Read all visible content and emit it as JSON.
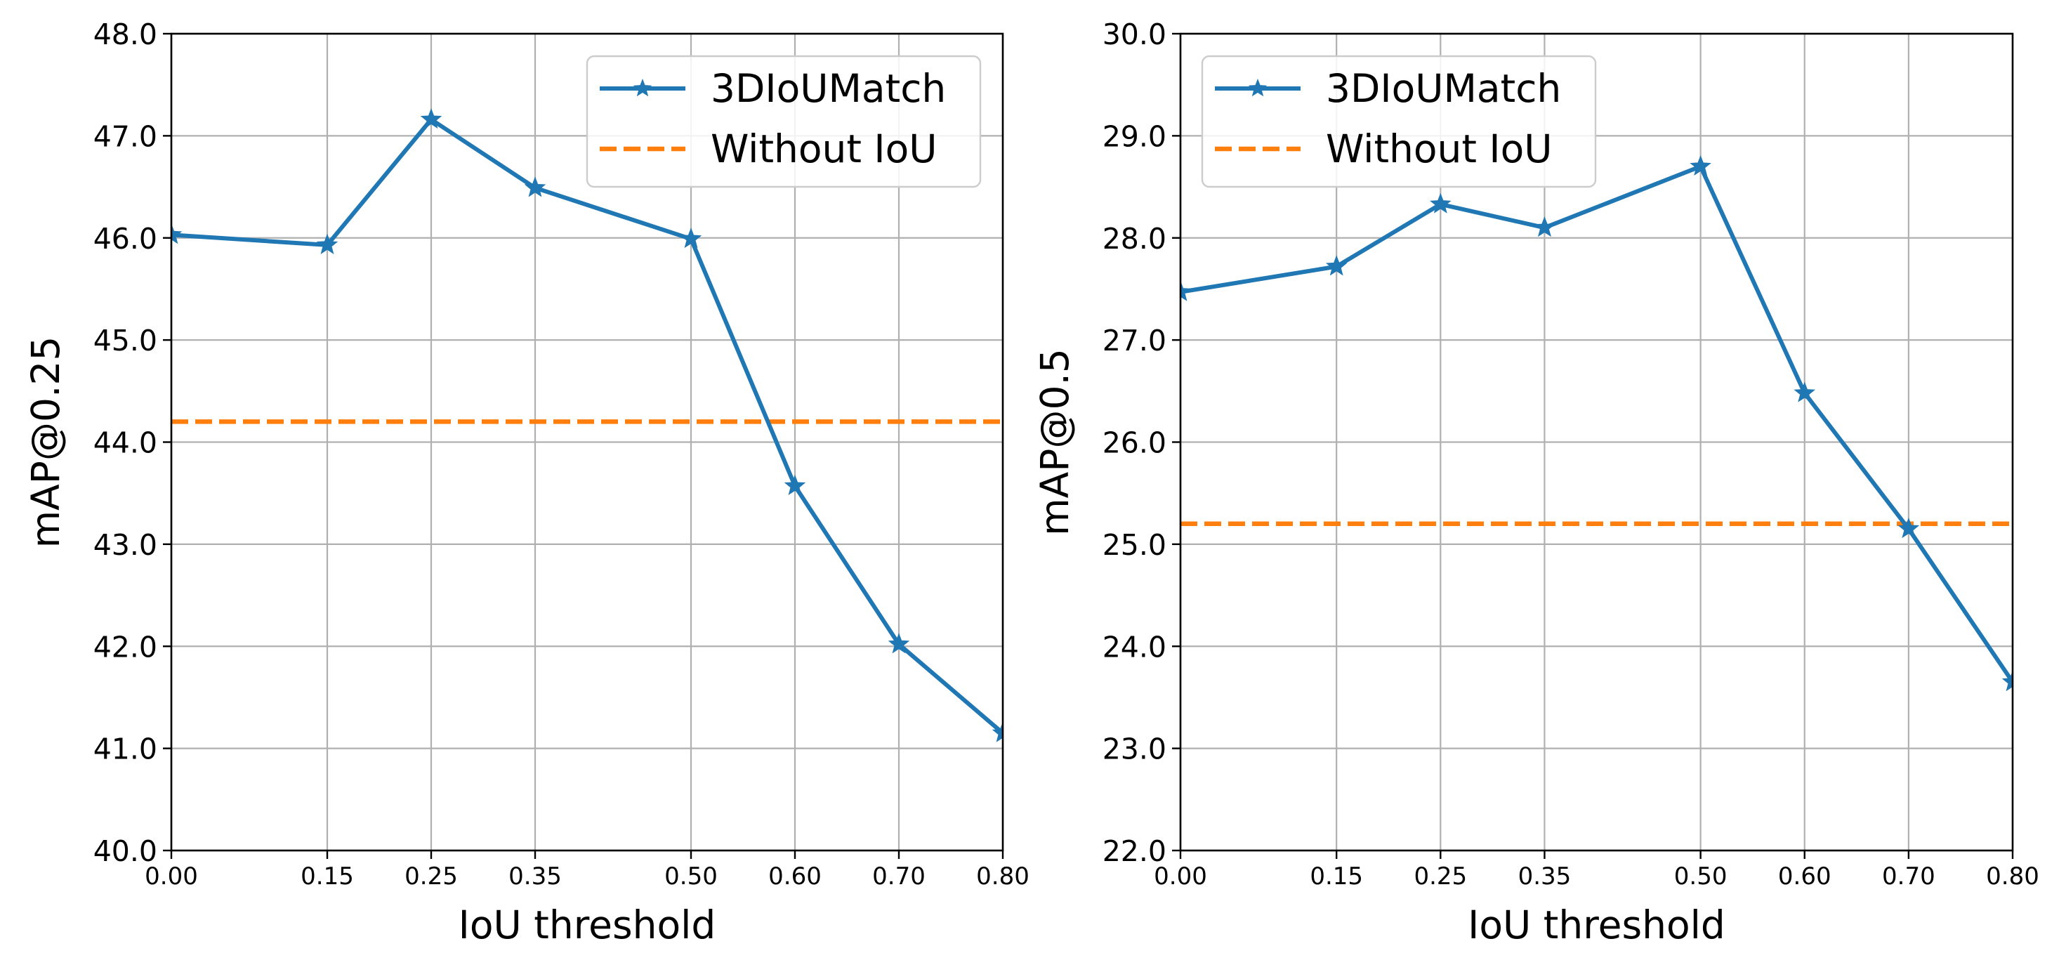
{
  "colors": {
    "series": "#1f77b4",
    "baseline": "#ff7f0e",
    "grid": "#b0b0b0",
    "axis": "#000000",
    "legend_border": "#cccccc"
  },
  "chart_data": [
    {
      "type": "line",
      "title": "",
      "xlabel": "IoU threshold",
      "ylabel": "mAP@0.25",
      "x": [
        0.0,
        0.15,
        0.25,
        0.35,
        0.5,
        0.6,
        0.7,
        0.8
      ],
      "x_tick_labels": [
        "0.00",
        "0.15",
        "0.25",
        "0.35",
        "0.50",
        "0.60",
        "0.70",
        "0.80"
      ],
      "xlim": [
        0.0,
        0.8
      ],
      "ylim": [
        40.0,
        48.0
      ],
      "y_ticks": [
        40.0,
        41.0,
        42.0,
        43.0,
        44.0,
        45.0,
        46.0,
        47.0,
        48.0
      ],
      "y_tick_labels": [
        "40.0",
        "41.0",
        "42.0",
        "43.0",
        "44.0",
        "45.0",
        "46.0",
        "47.0",
        "48.0"
      ],
      "grid": true,
      "legend_position": "top-right",
      "series": [
        {
          "name": "3DIoUMatch",
          "style": "solid-star",
          "values": [
            46.03,
            45.93,
            47.16,
            46.49,
            45.99,
            43.57,
            42.02,
            41.15
          ]
        }
      ],
      "baseline": {
        "name": "Without IoU",
        "style": "dashed",
        "value": 44.2
      }
    },
    {
      "type": "line",
      "title": "",
      "xlabel": "IoU threshold",
      "ylabel": "mAP@0.5",
      "x": [
        0.0,
        0.15,
        0.25,
        0.35,
        0.5,
        0.6,
        0.7,
        0.8
      ],
      "x_tick_labels": [
        "0.00",
        "0.15",
        "0.25",
        "0.35",
        "0.50",
        "0.60",
        "0.70",
        "0.80"
      ],
      "xlim": [
        0.0,
        0.8
      ],
      "ylim": [
        22.0,
        30.0
      ],
      "y_ticks": [
        22.0,
        23.0,
        24.0,
        25.0,
        26.0,
        27.0,
        28.0,
        29.0,
        30.0
      ],
      "y_tick_labels": [
        "22.0",
        "23.0",
        "24.0",
        "25.0",
        "26.0",
        "27.0",
        "28.0",
        "29.0",
        "30.0"
      ],
      "grid": true,
      "legend_position": "top-left",
      "series": [
        {
          "name": "3DIoUMatch",
          "style": "solid-star",
          "values": [
            27.47,
            27.72,
            28.33,
            28.1,
            28.7,
            26.48,
            25.15,
            23.65
          ]
        }
      ],
      "baseline": {
        "name": "Without IoU",
        "style": "dashed",
        "value": 25.2
      }
    }
  ]
}
